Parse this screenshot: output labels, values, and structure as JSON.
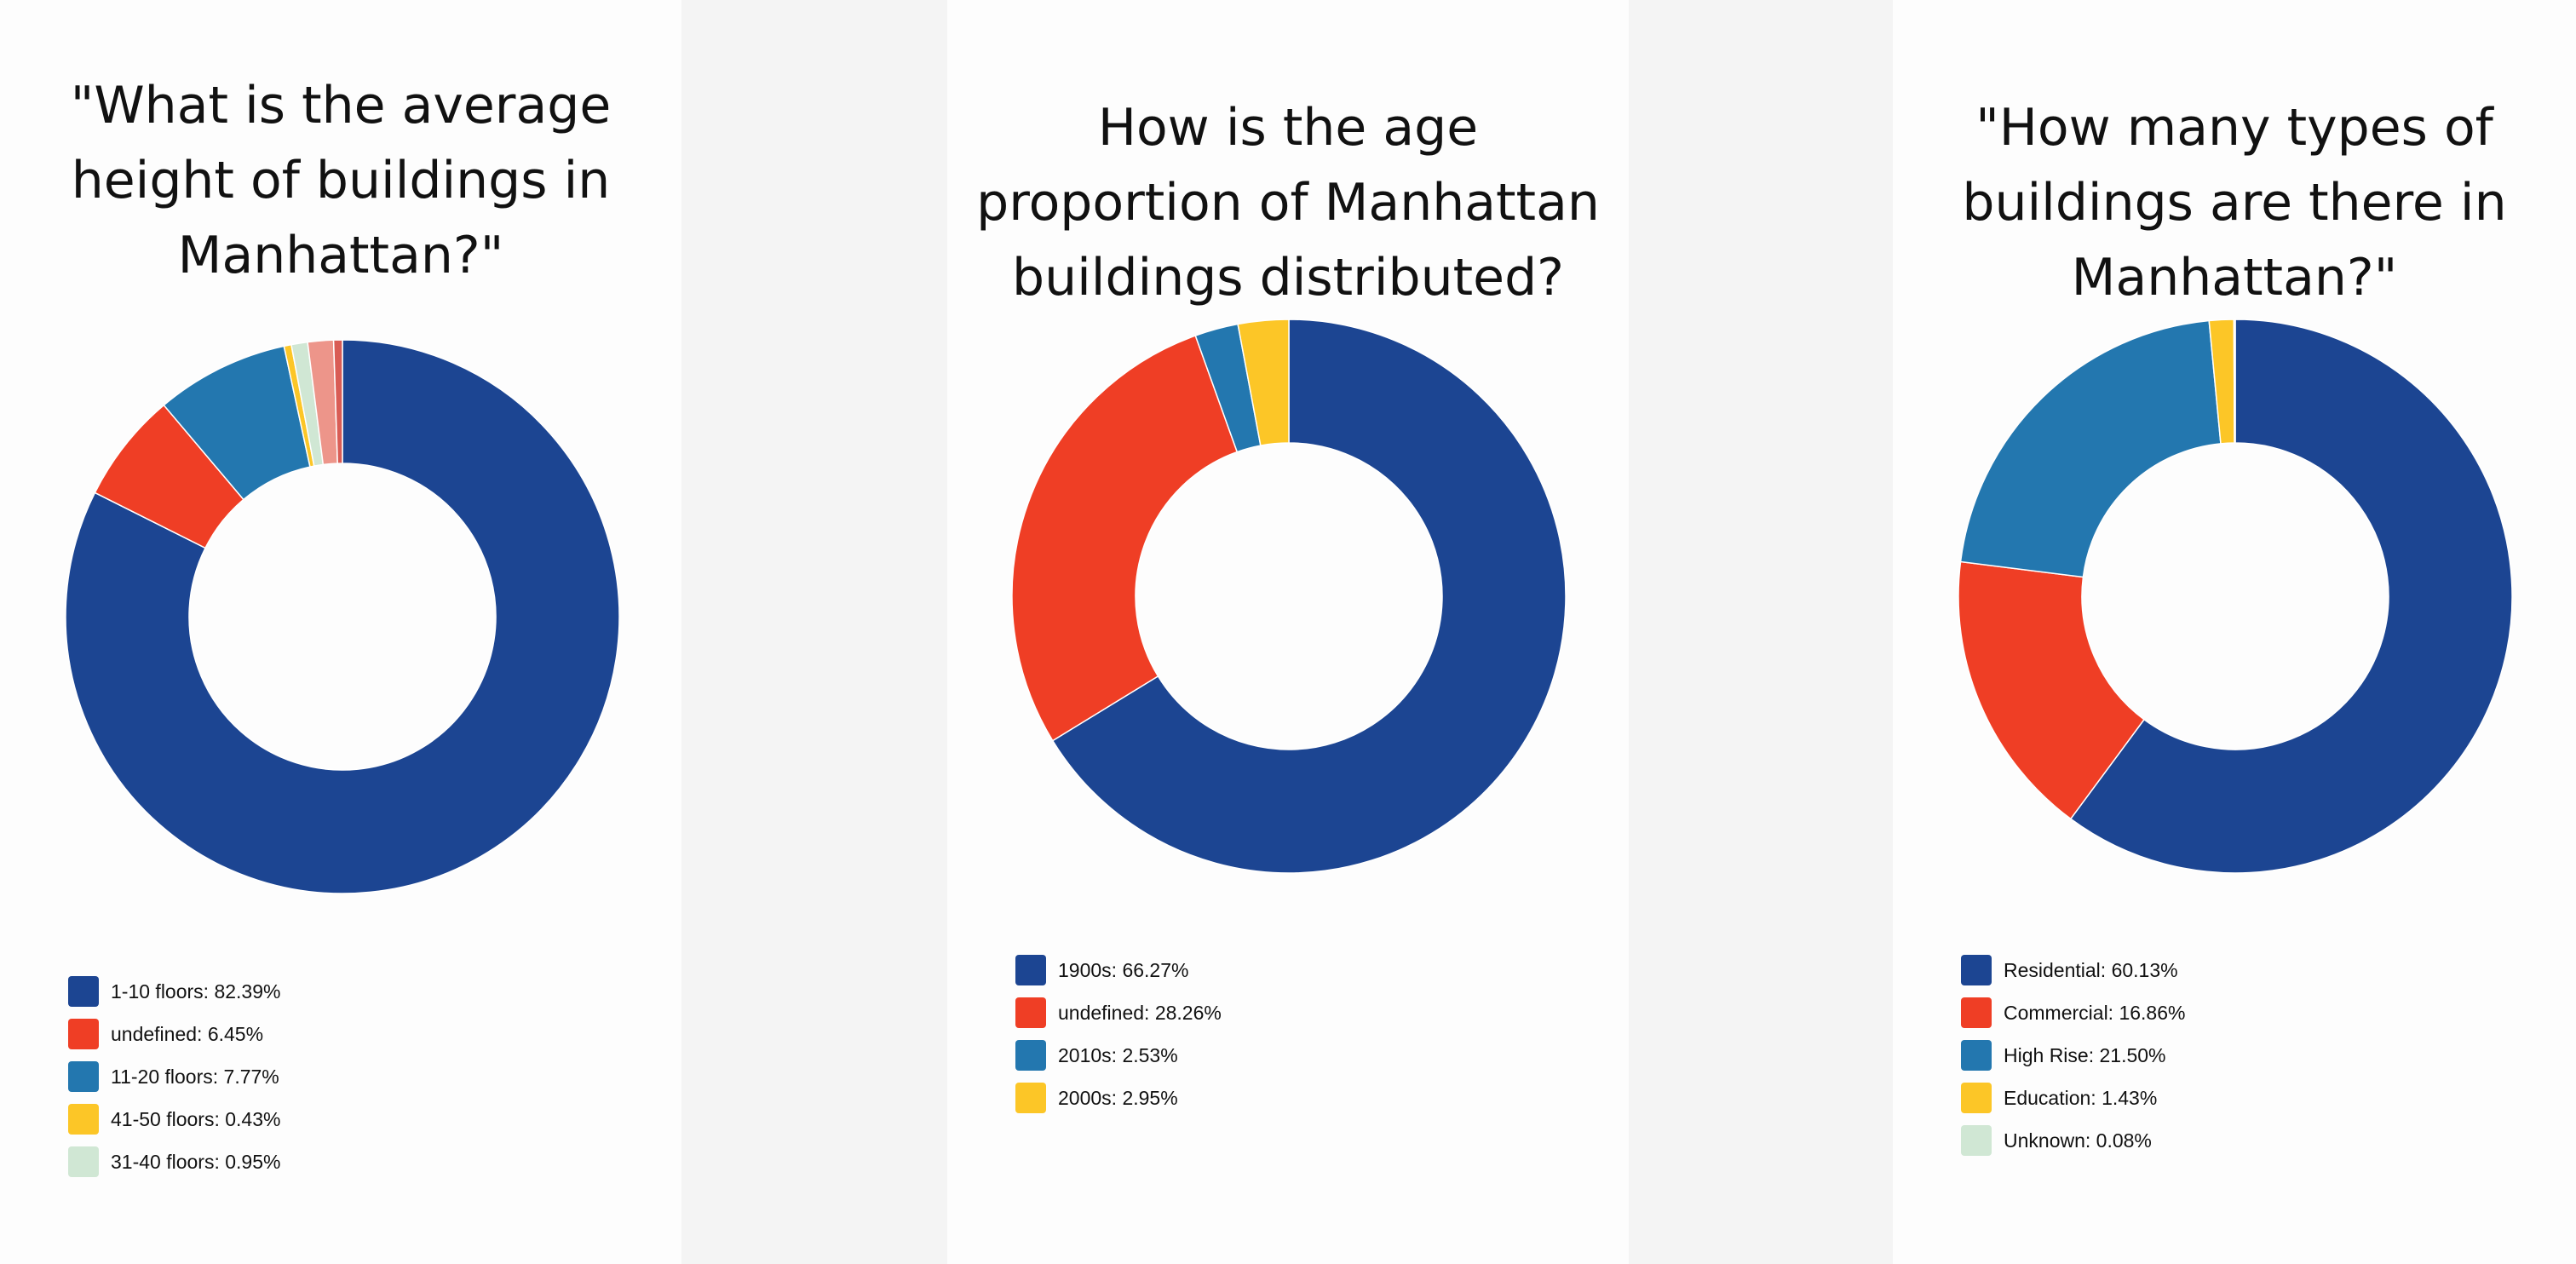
{
  "chart_data": [
    {
      "type": "pie",
      "donut": true,
      "title_lines": [
        "\"What is the average",
        "height of buildings in",
        "Manhattan?\""
      ],
      "categories": [
        "1-10 floors",
        "undefined",
        "11-20 floors",
        "41-50 floors",
        "31-40 floors",
        "",
        ""
      ],
      "values": [
        82.39,
        6.45,
        7.77,
        0.43,
        0.95,
        1.5,
        0.51
      ],
      "colors": [
        "#1c4592",
        "#ef3e25",
        "#2377af",
        "#fcc627",
        "#d0e7d4",
        "#ed958a",
        "#d95c55"
      ],
      "legend": [
        {
          "label": "1-10 floors: 82.39%",
          "color": "#1c4592"
        },
        {
          "label": "undefined: 6.45%",
          "color": "#ef3e25"
        },
        {
          "label": "11-20 floors: 7.77%",
          "color": "#2377af"
        },
        {
          "label": "41-50 floors: 0.43%",
          "color": "#fcc627"
        },
        {
          "label": "31-40 floors: 0.95%",
          "color": "#d0e7d4"
        }
      ],
      "legend_position": "bottom-left"
    },
    {
      "type": "pie",
      "donut": true,
      "title_lines": [
        "How is the age",
        "proportion of Manhattan",
        "buildings distributed?"
      ],
      "categories": [
        "1900s",
        "undefined",
        "2010s",
        "2000s"
      ],
      "values": [
        66.27,
        28.26,
        2.53,
        2.95
      ],
      "colors": [
        "#1c4592",
        "#ef3e25",
        "#2377af",
        "#fcc627"
      ],
      "legend": [
        {
          "label": "1900s: 66.27%",
          "color": "#1c4592"
        },
        {
          "label": "undefined: 28.26%",
          "color": "#ef3e25"
        },
        {
          "label": "2010s: 2.53%",
          "color": "#2377af"
        },
        {
          "label": "2000s: 2.95%",
          "color": "#fcc627"
        }
      ],
      "legend_position": "bottom-left"
    },
    {
      "type": "pie",
      "donut": true,
      "title_lines": [
        "\"How many types of",
        "buildings are there in",
        "Manhattan?\""
      ],
      "categories": [
        "Residential",
        "Commercial",
        "High Rise",
        "Education",
        "Unknown"
      ],
      "values": [
        60.13,
        16.86,
        21.5,
        1.43,
        0.08
      ],
      "colors": [
        "#1c4592",
        "#ef3e25",
        "#2377af",
        "#fcc627",
        "#d0e7d4"
      ],
      "legend": [
        {
          "label": "Residential: 60.13%",
          "color": "#1c4592"
        },
        {
          "label": "Commercial: 16.86%",
          "color": "#ef3e25"
        },
        {
          "label": "High Rise: 21.50%",
          "color": "#2377af"
        },
        {
          "label": "Education: 1.43%",
          "color": "#fcc627"
        },
        {
          "label": "Unknown: 0.08%",
          "color": "#d0e7d4"
        }
      ],
      "legend_position": "bottom-left"
    }
  ]
}
